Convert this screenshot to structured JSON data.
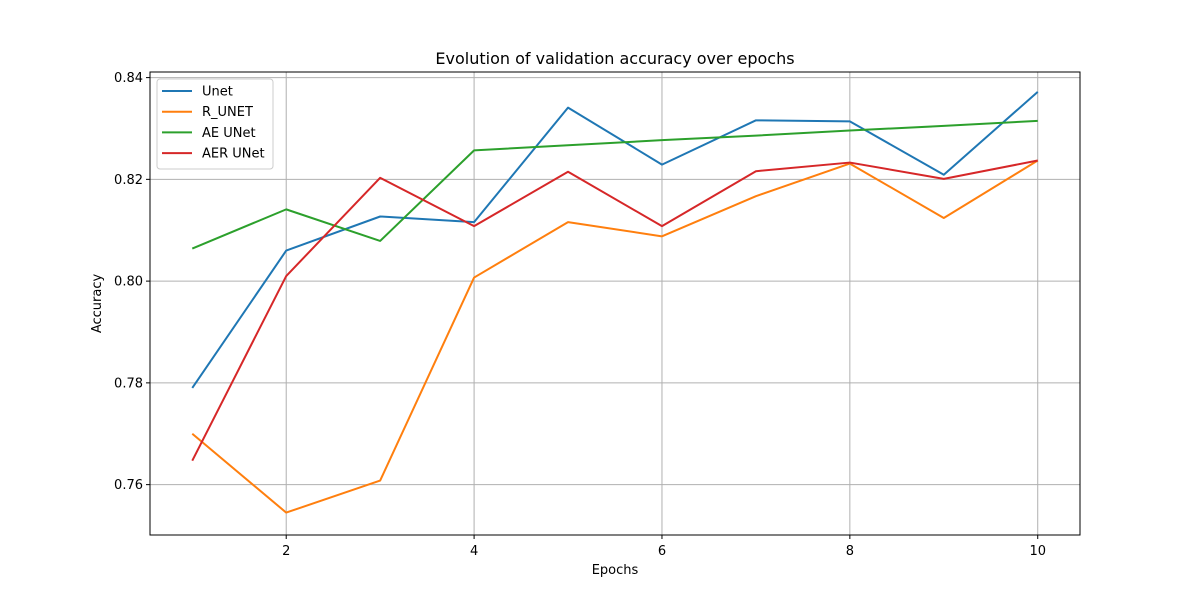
{
  "chart_data": {
    "type": "line",
    "title": "Evolution of validation accuracy over epochs",
    "xlabel": "Epochs",
    "ylabel": "Accuracy",
    "xlim": [
      0.55,
      10.45
    ],
    "ylim": [
      0.7501,
      0.8411
    ],
    "xticks": [
      2,
      4,
      6,
      8,
      10
    ],
    "yticks": [
      0.76,
      0.78,
      0.8,
      0.82,
      0.84
    ],
    "ytick_labels": [
      "0.76",
      "0.78",
      "0.80",
      "0.82",
      "0.84"
    ],
    "grid": true,
    "legend_position": "upper-left",
    "x": [
      1,
      2,
      3,
      4,
      5,
      6,
      7,
      8,
      9,
      10
    ],
    "series": [
      {
        "name": "Unet",
        "color": "#1f77b4",
        "values": [
          0.779,
          0.806,
          0.8127,
          0.8116,
          0.8341,
          0.8229,
          0.8316,
          0.8314,
          0.8209,
          0.8372
        ]
      },
      {
        "name": "R_UNET",
        "color": "#ff7f0e",
        "values": [
          0.77,
          0.7545,
          0.7608,
          0.8007,
          0.8116,
          0.8088,
          0.8167,
          0.8231,
          0.8124,
          0.8237
        ]
      },
      {
        "name": "AE UNet",
        "color": "#2ca02c",
        "values": [
          0.8064,
          0.8141,
          0.8079,
          0.8257,
          0.8267,
          0.8277,
          0.8286,
          0.8296,
          0.8305,
          0.8315
        ]
      },
      {
        "name": "AER UNet",
        "color": "#d62728",
        "values": [
          0.7647,
          0.801,
          0.8203,
          0.8108,
          0.8215,
          0.8108,
          0.8216,
          0.8233,
          0.8201,
          0.8237
        ]
      }
    ]
  }
}
